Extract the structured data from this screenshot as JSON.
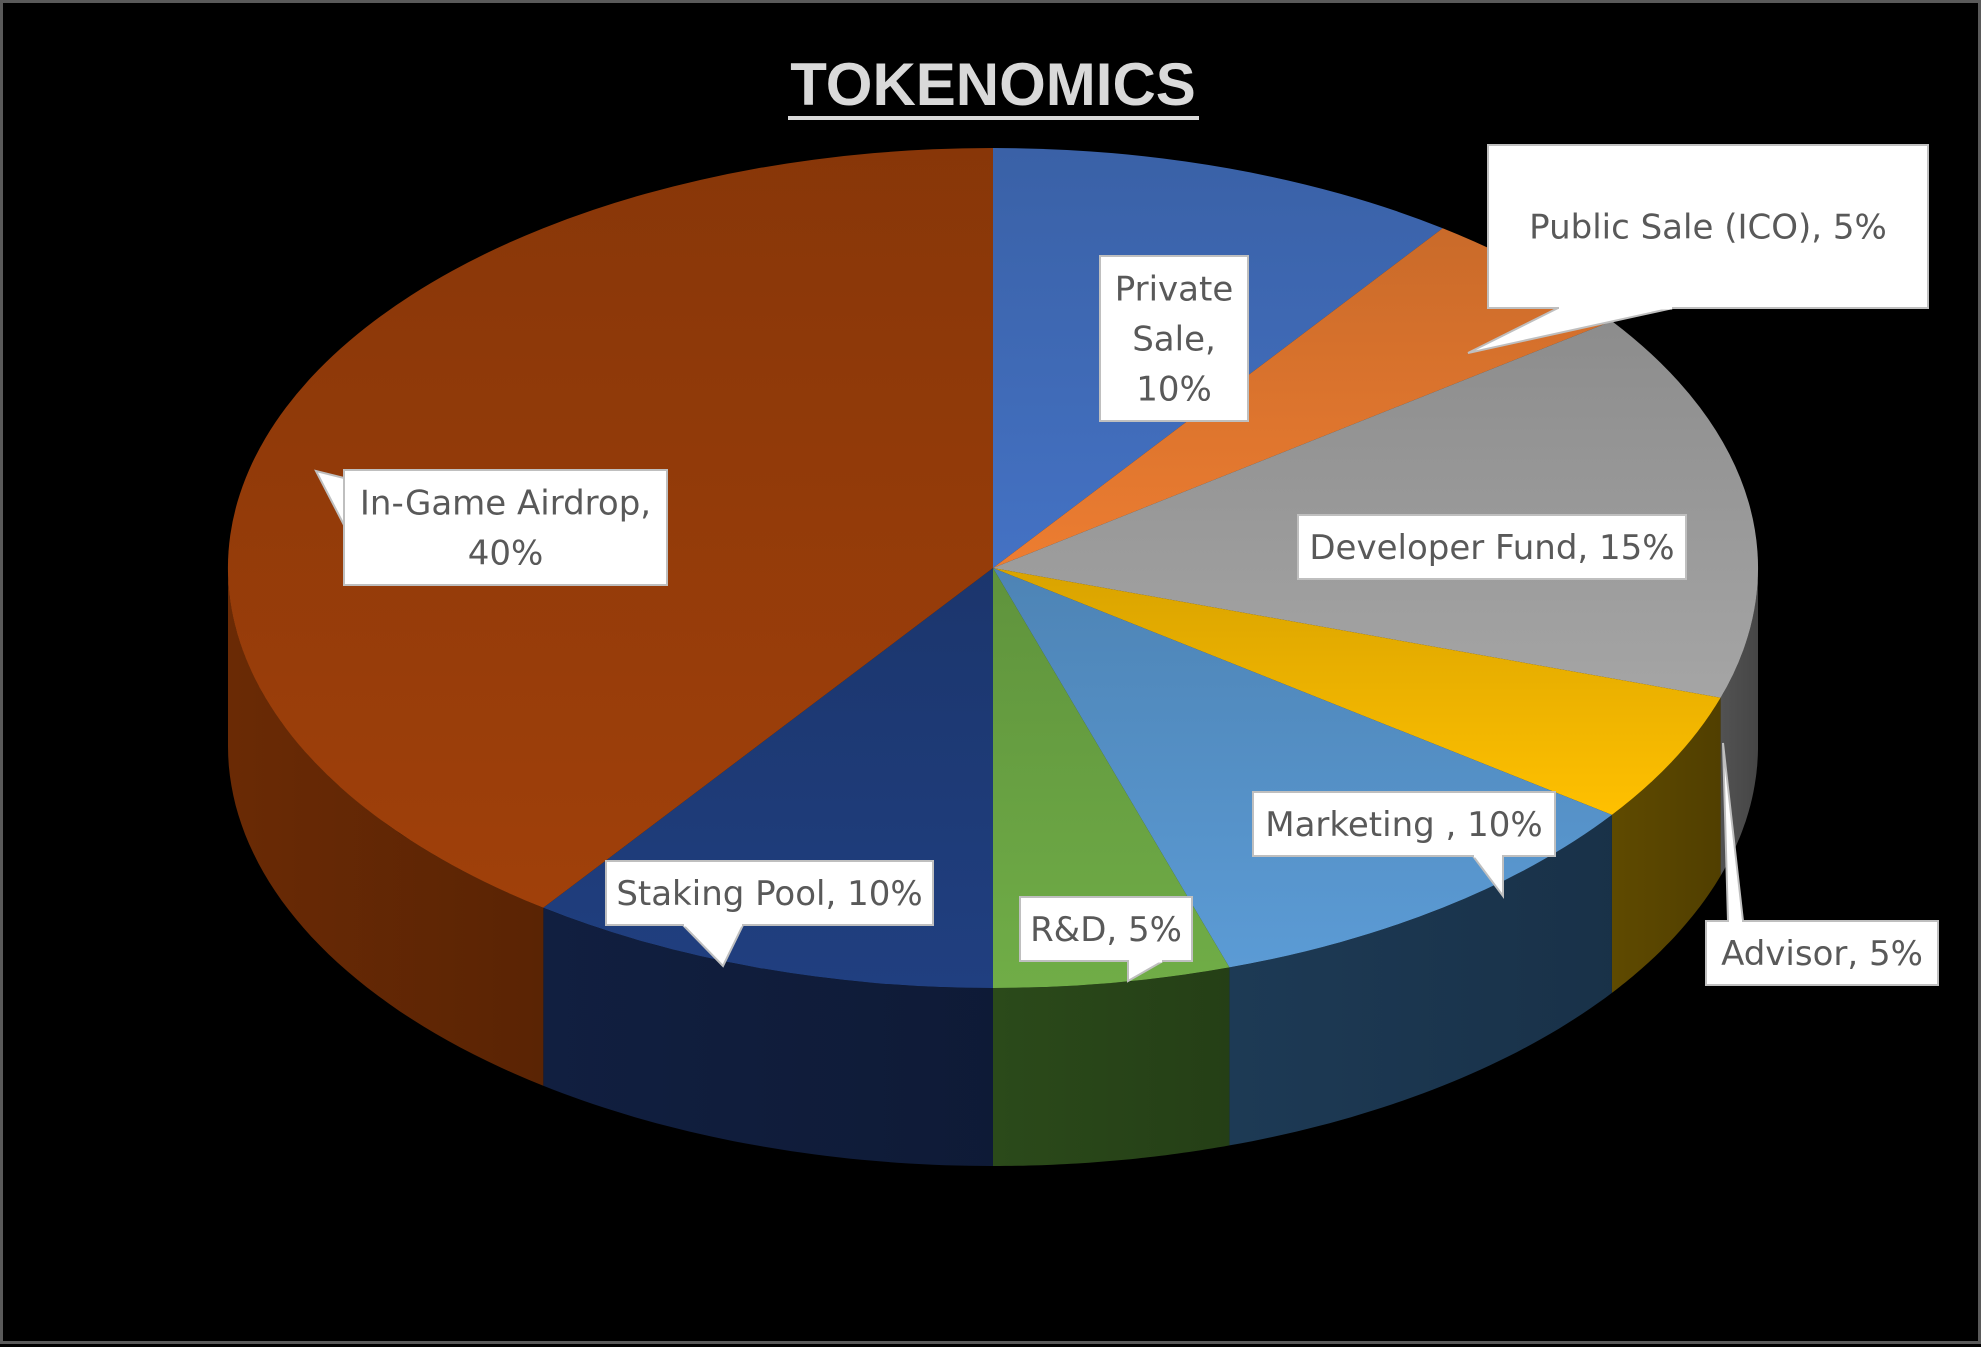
{
  "chart_data": {
    "type": "pie",
    "style": "3d",
    "title": "TOKENOMICS",
    "legend": "none",
    "colors_note": "slice colors match source",
    "slices": [
      {
        "name": "Private Sale",
        "value": 10,
        "label": [
          "Private",
          "Sale,",
          "10%"
        ],
        "top_color": "#4472c4",
        "side_color": "#1f3864"
      },
      {
        "name": "Public Sale (ICO)",
        "value": 5,
        "label": [
          "Public Sale (ICO), 5%"
        ],
        "top_color": "#ed7d31",
        "side_color": "#843c0c"
      },
      {
        "name": "Developer Fund",
        "value": 15,
        "label": [
          "Developer Fund, 15%"
        ],
        "top_color": "#a5a5a5",
        "side_color": "#525252"
      },
      {
        "name": "Advisor",
        "value": 5,
        "label": [
          "Advisor, 5%"
        ],
        "top_color": "#ffc000",
        "side_color": "#5f4a00"
      },
      {
        "name": "Marketing",
        "value": 10,
        "label": [
          "Marketing , 10%"
        ],
        "top_color": "#5b9bd5",
        "side_color": "#1d3a55"
      },
      {
        "name": "R&D",
        "value": 5,
        "label": [
          "R&D, 5%"
        ],
        "top_color": "#70ad47",
        "side_color": "#2b4a1a"
      },
      {
        "name": "Staking Pool",
        "value": 10,
        "label": [
          "Staking Pool, 10%"
        ],
        "top_color": "#203f80",
        "side_color": "#111f40"
      },
      {
        "name": "In-Game Airdrop",
        "value": 40,
        "label": [
          "In-Game Airdrop,",
          "40%"
        ],
        "top_color": "#a0400a",
        "side_color": "#6a2a05"
      }
    ]
  }
}
